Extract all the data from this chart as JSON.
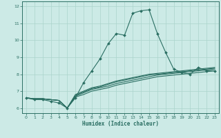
{
  "xlabel": "Humidex (Indice chaleur)",
  "background_color": "#cceae6",
  "grid_color": "#aad4cc",
  "line_color": "#2a6e62",
  "xlim": [
    -0.5,
    23.5
  ],
  "ylim": [
    5.7,
    12.3
  ],
  "xticks": [
    0,
    1,
    2,
    3,
    4,
    5,
    6,
    7,
    8,
    9,
    10,
    11,
    12,
    13,
    14,
    15,
    16,
    17,
    18,
    19,
    20,
    21,
    22,
    23
  ],
  "yticks": [
    6,
    7,
    8,
    9,
    10,
    11,
    12
  ],
  "line1_x": [
    0,
    1,
    2,
    3,
    4,
    5,
    6,
    7,
    8,
    9,
    10,
    11,
    12,
    13,
    14,
    15,
    16,
    17,
    18,
    19,
    20,
    21,
    22,
    23
  ],
  "line1_y": [
    6.6,
    6.5,
    6.5,
    6.4,
    6.3,
    6.0,
    6.6,
    7.5,
    8.2,
    8.9,
    9.8,
    10.4,
    10.3,
    11.6,
    11.75,
    11.8,
    10.4,
    9.3,
    8.3,
    8.1,
    8.0,
    8.4,
    8.2,
    8.2
  ],
  "line2_x": [
    0,
    1,
    2,
    3,
    4,
    5,
    6,
    7,
    8,
    9,
    10,
    11,
    12,
    13,
    14,
    15,
    16,
    17,
    18,
    19,
    20,
    21,
    22,
    23
  ],
  "line2_y": [
    6.6,
    6.55,
    6.55,
    6.5,
    6.45,
    6.0,
    6.65,
    6.8,
    7.0,
    7.1,
    7.2,
    7.35,
    7.45,
    7.55,
    7.65,
    7.75,
    7.85,
    7.9,
    7.95,
    8.0,
    8.05,
    8.1,
    8.15,
    8.2
  ],
  "line3_x": [
    0,
    1,
    2,
    3,
    4,
    5,
    6,
    7,
    8,
    9,
    10,
    11,
    12,
    13,
    14,
    15,
    16,
    17,
    18,
    19,
    20,
    21,
    22,
    23
  ],
  "line3_y": [
    6.6,
    6.55,
    6.55,
    6.5,
    6.45,
    6.0,
    6.7,
    6.9,
    7.1,
    7.2,
    7.3,
    7.45,
    7.55,
    7.65,
    7.75,
    7.85,
    7.95,
    8.0,
    8.05,
    8.1,
    8.15,
    8.2,
    8.25,
    8.3
  ],
  "line4_x": [
    0,
    1,
    2,
    3,
    4,
    5,
    6,
    7,
    8,
    9,
    10,
    11,
    12,
    13,
    14,
    15,
    16,
    17,
    18,
    19,
    20,
    21,
    22,
    23
  ],
  "line4_y": [
    6.6,
    6.55,
    6.55,
    6.5,
    6.45,
    6.0,
    6.75,
    6.95,
    7.15,
    7.25,
    7.4,
    7.55,
    7.65,
    7.75,
    7.85,
    7.95,
    8.0,
    8.05,
    8.1,
    8.15,
    8.2,
    8.25,
    8.3,
    8.35
  ],
  "line5_x": [
    0,
    1,
    2,
    3,
    4,
    5,
    6,
    7,
    8,
    9,
    10,
    11,
    12,
    13,
    14,
    15,
    16,
    17,
    18,
    19,
    20,
    21,
    22,
    23
  ],
  "line5_y": [
    6.6,
    6.55,
    6.55,
    6.5,
    6.45,
    6.0,
    6.8,
    7.0,
    7.2,
    7.3,
    7.45,
    7.6,
    7.7,
    7.8,
    7.9,
    8.0,
    8.05,
    8.1,
    8.15,
    8.2,
    8.25,
    8.3,
    8.35,
    8.4
  ]
}
